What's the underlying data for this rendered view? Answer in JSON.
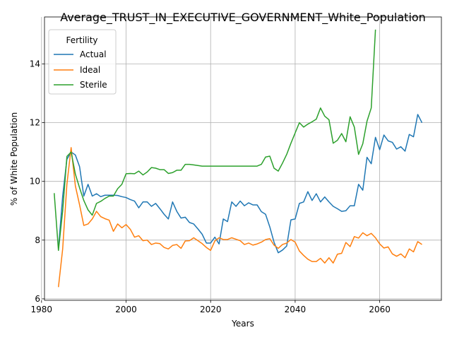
{
  "chart_data": {
    "type": "line",
    "title": "Average_TRUST_IN_EXECUTIVE_GOVERNMENT_White_Population",
    "xlabel": "Years",
    "ylabel": "% of White Population",
    "xlim": [
      1980.7,
      2074.6
    ],
    "ylim": [
      5.95,
      15.6
    ],
    "x_ticks": [
      1980,
      2000,
      2020,
      2040,
      2060
    ],
    "y_ticks": [
      6,
      8,
      10,
      12,
      14
    ],
    "x_tick_labels": [
      "1980",
      "2000",
      "2020",
      "2040",
      "2060"
    ],
    "y_tick_labels": [
      "6",
      "8",
      "10",
      "12",
      "14"
    ],
    "grid": true,
    "legend": {
      "title": "Fertility",
      "placement": "top-left"
    },
    "series": [
      {
        "name": "Actual",
        "color": "#1f77b4",
        "points": [
          [
            1984,
            7.7
          ],
          [
            1985,
            9.5
          ],
          [
            1986,
            10.75
          ],
          [
            1987,
            11.0
          ],
          [
            1988,
            10.9
          ],
          [
            1989,
            10.5
          ],
          [
            1990,
            9.5
          ],
          [
            1991,
            9.9
          ],
          [
            1992,
            9.5
          ],
          [
            1993,
            9.58
          ],
          [
            1994,
            9.48
          ],
          [
            1995,
            9.53
          ],
          [
            1996,
            9.53
          ],
          [
            1997,
            9.53
          ],
          [
            1998,
            9.52
          ],
          [
            1999,
            9.48
          ],
          [
            2000,
            9.45
          ],
          [
            2001,
            9.38
          ],
          [
            2002,
            9.33
          ],
          [
            2003,
            9.1
          ],
          [
            2004,
            9.3
          ],
          [
            2005,
            9.3
          ],
          [
            2006,
            9.15
          ],
          [
            2007,
            9.25
          ],
          [
            2008,
            9.07
          ],
          [
            2009,
            8.88
          ],
          [
            2010,
            8.72
          ],
          [
            2011,
            9.3
          ],
          [
            2012,
            8.98
          ],
          [
            2013,
            8.75
          ],
          [
            2014,
            8.78
          ],
          [
            2015,
            8.6
          ],
          [
            2016,
            8.55
          ],
          [
            2017,
            8.38
          ],
          [
            2018,
            8.2
          ],
          [
            2019,
            7.9
          ],
          [
            2020,
            7.9
          ],
          [
            2021,
            8.1
          ],
          [
            2022,
            7.87
          ],
          [
            2023,
            8.72
          ],
          [
            2024,
            8.63
          ],
          [
            2025,
            9.3
          ],
          [
            2026,
            9.15
          ],
          [
            2027,
            9.33
          ],
          [
            2028,
            9.17
          ],
          [
            2029,
            9.27
          ],
          [
            2030,
            9.2
          ],
          [
            2031,
            9.2
          ],
          [
            2032,
            8.97
          ],
          [
            2033,
            8.88
          ],
          [
            2034,
            8.45
          ],
          [
            2035,
            7.93
          ],
          [
            2036,
            7.57
          ],
          [
            2037,
            7.66
          ],
          [
            2038,
            7.8
          ],
          [
            2039,
            8.69
          ],
          [
            2040,
            8.72
          ],
          [
            2041,
            9.25
          ],
          [
            2042,
            9.3
          ],
          [
            2043,
            9.65
          ],
          [
            2044,
            9.35
          ],
          [
            2045,
            9.58
          ],
          [
            2046,
            9.3
          ],
          [
            2047,
            9.47
          ],
          [
            2048,
            9.3
          ],
          [
            2049,
            9.15
          ],
          [
            2050,
            9.07
          ],
          [
            2051,
            8.98
          ],
          [
            2052,
            9.0
          ],
          [
            2053,
            9.17
          ],
          [
            2054,
            9.17
          ],
          [
            2055,
            9.9
          ],
          [
            2056,
            9.7
          ],
          [
            2057,
            10.82
          ],
          [
            2058,
            10.6
          ],
          [
            2059,
            11.5
          ],
          [
            2060,
            11.08
          ],
          [
            2061,
            11.58
          ],
          [
            2062,
            11.38
          ],
          [
            2063,
            11.33
          ],
          [
            2064,
            11.1
          ],
          [
            2065,
            11.18
          ],
          [
            2066,
            11.03
          ],
          [
            2067,
            11.6
          ],
          [
            2068,
            11.52
          ],
          [
            2069,
            12.28
          ],
          [
            2070,
            12.0
          ]
        ]
      },
      {
        "name": "Ideal",
        "color": "#ff7f0e",
        "points": [
          [
            1984,
            6.4
          ],
          [
            1985,
            7.7
          ],
          [
            1986,
            9.9
          ],
          [
            1987,
            11.15
          ],
          [
            1988,
            9.85
          ],
          [
            1989,
            9.2
          ],
          [
            1990,
            8.5
          ],
          [
            1991,
            8.55
          ],
          [
            1992,
            8.72
          ],
          [
            1993,
            8.98
          ],
          [
            1994,
            8.8
          ],
          [
            1995,
            8.73
          ],
          [
            1996,
            8.68
          ],
          [
            1997,
            8.3
          ],
          [
            1998,
            8.55
          ],
          [
            1999,
            8.42
          ],
          [
            2000,
            8.53
          ],
          [
            2001,
            8.37
          ],
          [
            2002,
            8.1
          ],
          [
            2003,
            8.15
          ],
          [
            2004,
            7.98
          ],
          [
            2005,
            8.0
          ],
          [
            2006,
            7.85
          ],
          [
            2007,
            7.9
          ],
          [
            2008,
            7.88
          ],
          [
            2009,
            7.75
          ],
          [
            2010,
            7.7
          ],
          [
            2011,
            7.82
          ],
          [
            2012,
            7.85
          ],
          [
            2013,
            7.72
          ],
          [
            2014,
            7.97
          ],
          [
            2015,
            7.98
          ],
          [
            2016,
            8.08
          ],
          [
            2017,
            7.98
          ],
          [
            2018,
            7.88
          ],
          [
            2019,
            7.75
          ],
          [
            2020,
            7.65
          ],
          [
            2021,
            7.97
          ],
          [
            2022,
            8.08
          ],
          [
            2023,
            8.02
          ],
          [
            2024,
            8.02
          ],
          [
            2025,
            8.08
          ],
          [
            2026,
            8.03
          ],
          [
            2027,
            7.98
          ],
          [
            2028,
            7.85
          ],
          [
            2029,
            7.9
          ],
          [
            2030,
            7.83
          ],
          [
            2031,
            7.87
          ],
          [
            2032,
            7.93
          ],
          [
            2033,
            8.02
          ],
          [
            2034,
            8.05
          ],
          [
            2035,
            7.83
          ],
          [
            2036,
            7.72
          ],
          [
            2037,
            7.85
          ],
          [
            2038,
            7.9
          ],
          [
            2039,
            8.02
          ],
          [
            2040,
            7.93
          ],
          [
            2041,
            7.63
          ],
          [
            2042,
            7.48
          ],
          [
            2043,
            7.35
          ],
          [
            2044,
            7.27
          ],
          [
            2045,
            7.27
          ],
          [
            2046,
            7.38
          ],
          [
            2047,
            7.22
          ],
          [
            2048,
            7.4
          ],
          [
            2049,
            7.22
          ],
          [
            2050,
            7.52
          ],
          [
            2051,
            7.55
          ],
          [
            2052,
            7.92
          ],
          [
            2053,
            7.78
          ],
          [
            2054,
            8.12
          ],
          [
            2055,
            8.07
          ],
          [
            2056,
            8.25
          ],
          [
            2057,
            8.15
          ],
          [
            2058,
            8.23
          ],
          [
            2059,
            8.08
          ],
          [
            2060,
            7.87
          ],
          [
            2061,
            7.73
          ],
          [
            2062,
            7.77
          ],
          [
            2063,
            7.53
          ],
          [
            2064,
            7.45
          ],
          [
            2065,
            7.53
          ],
          [
            2066,
            7.4
          ],
          [
            2067,
            7.7
          ],
          [
            2068,
            7.6
          ],
          [
            2069,
            7.95
          ],
          [
            2070,
            7.85
          ]
        ]
      },
      {
        "name": "Sterile",
        "color": "#2ca02c",
        "points": [
          [
            1983,
            9.6
          ],
          [
            1984,
            7.65
          ],
          [
            1985,
            9.0
          ],
          [
            1986,
            10.85
          ],
          [
            1987,
            11.0
          ],
          [
            1988,
            10.25
          ],
          [
            1989,
            9.78
          ],
          [
            1990,
            9.35
          ],
          [
            1991,
            9.03
          ],
          [
            1992,
            8.85
          ],
          [
            1993,
            9.25
          ],
          [
            1994,
            9.32
          ],
          [
            1995,
            9.42
          ],
          [
            1996,
            9.5
          ],
          [
            1997,
            9.5
          ],
          [
            1998,
            9.75
          ],
          [
            1999,
            9.9
          ],
          [
            2000,
            10.26
          ],
          [
            2001,
            10.27
          ],
          [
            2002,
            10.26
          ],
          [
            2003,
            10.35
          ],
          [
            2004,
            10.22
          ],
          [
            2005,
            10.32
          ],
          [
            2006,
            10.47
          ],
          [
            2007,
            10.45
          ],
          [
            2008,
            10.4
          ],
          [
            2009,
            10.4
          ],
          [
            2010,
            10.27
          ],
          [
            2011,
            10.3
          ],
          [
            2012,
            10.38
          ],
          [
            2013,
            10.38
          ],
          [
            2014,
            10.58
          ],
          [
            2015,
            10.58
          ],
          [
            2016,
            10.56
          ],
          [
            2017,
            10.54
          ],
          [
            2018,
            10.52
          ],
          [
            2019,
            10.52
          ],
          [
            2020,
            10.52
          ],
          [
            2021,
            10.52
          ],
          [
            2022,
            10.52
          ],
          [
            2023,
            10.52
          ],
          [
            2024,
            10.52
          ],
          [
            2025,
            10.52
          ],
          [
            2026,
            10.52
          ],
          [
            2027,
            10.52
          ],
          [
            2028,
            10.52
          ],
          [
            2029,
            10.52
          ],
          [
            2030,
            10.52
          ],
          [
            2031,
            10.52
          ],
          [
            2032,
            10.58
          ],
          [
            2033,
            10.83
          ],
          [
            2034,
            10.86
          ],
          [
            2035,
            10.45
          ],
          [
            2036,
            10.35
          ],
          [
            2037,
            10.62
          ],
          [
            2038,
            10.92
          ],
          [
            2039,
            11.3
          ],
          [
            2040,
            11.65
          ],
          [
            2041,
            12.0
          ],
          [
            2042,
            11.85
          ],
          [
            2043,
            11.95
          ],
          [
            2044,
            12.03
          ],
          [
            2045,
            12.12
          ],
          [
            2046,
            12.5
          ],
          [
            2047,
            12.22
          ],
          [
            2048,
            12.1
          ],
          [
            2049,
            11.3
          ],
          [
            2050,
            11.4
          ],
          [
            2051,
            11.63
          ],
          [
            2052,
            11.35
          ],
          [
            2053,
            12.2
          ],
          [
            2054,
            11.85
          ],
          [
            2055,
            10.92
          ],
          [
            2056,
            11.28
          ],
          [
            2057,
            12.05
          ],
          [
            2058,
            12.5
          ],
          [
            2059,
            15.17
          ]
        ]
      }
    ]
  }
}
